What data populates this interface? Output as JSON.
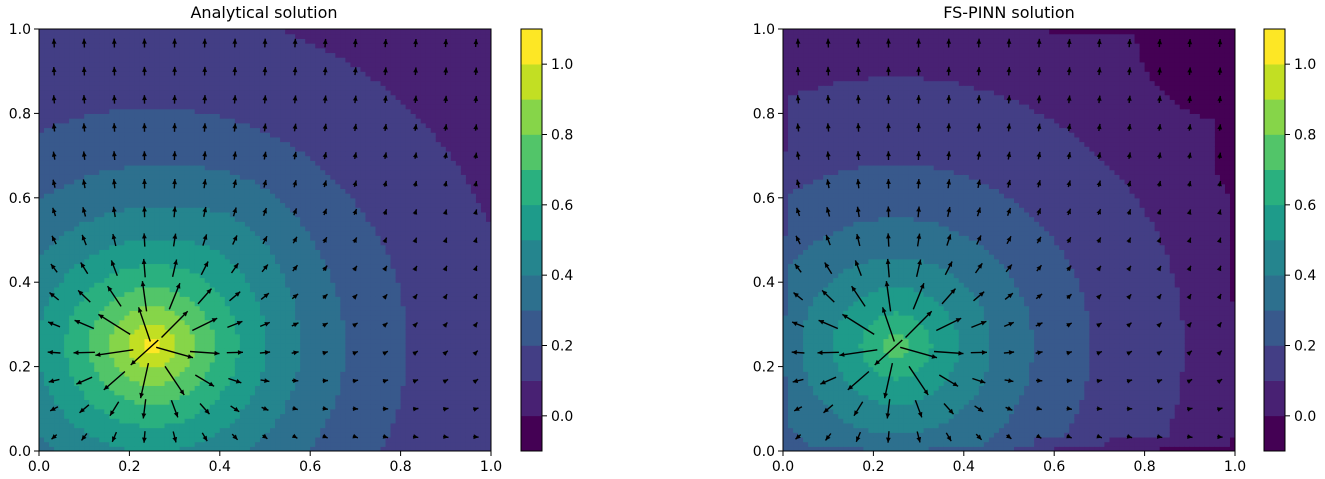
{
  "colors": {
    "level_fills": [
      "#440154",
      "#482173",
      "#433e85",
      "#38598c",
      "#2d708e",
      "#25858e",
      "#1e9b8a",
      "#2ab07f",
      "#52c569",
      "#86d549",
      "#c2df23",
      "#fde725"
    ],
    "arrow": "#000000",
    "frame": "#000000",
    "contour_line": "#ffffff"
  },
  "chart_data": [
    {
      "type": "heatmap",
      "subtype": "filled-contour with quiver",
      "title": "Analytical solution",
      "xlabel": "",
      "ylabel": "",
      "xlim": [
        0.0,
        1.0
      ],
      "ylim": [
        0.0,
        1.0
      ],
      "x_ticks": [
        "0.0",
        "0.2",
        "0.4",
        "0.6",
        "0.8",
        "1.0"
      ],
      "y_ticks": [
        "0.0",
        "0.2",
        "0.4",
        "0.6",
        "0.8",
        "1.0"
      ],
      "colorbar": {
        "range": [
          -0.1,
          1.1
        ],
        "ticks": [
          "0.0",
          "0.2",
          "0.4",
          "0.6",
          "0.8",
          "1.0"
        ],
        "levels": [
          -0.1,
          0.0,
          0.1,
          0.2,
          0.3,
          0.4,
          0.5,
          0.6,
          0.7,
          0.8,
          0.9,
          1.0,
          1.1
        ]
      },
      "source": {
        "x": 0.25,
        "y": 0.25,
        "peak": 1.05
      },
      "field": {
        "model": "analytical",
        "decay": 0.34,
        "floor": 0.0
      },
      "quiver": {
        "grid": 15,
        "direction": "outward from source, +y at top boundary"
      }
    },
    {
      "type": "heatmap",
      "subtype": "filled-contour with quiver",
      "title": "FS-PINN solution",
      "xlabel": "",
      "ylabel": "",
      "xlim": [
        0.0,
        1.0
      ],
      "ylim": [
        0.0,
        1.0
      ],
      "x_ticks": [
        "0.0",
        "0.2",
        "0.4",
        "0.6",
        "0.8",
        "1.0"
      ],
      "y_ticks": [
        "0.0",
        "0.2",
        "0.4",
        "0.6",
        "0.8",
        "1.0"
      ],
      "colorbar": {
        "range": [
          -0.1,
          1.1
        ],
        "ticks": [
          "0.0",
          "0.2",
          "0.4",
          "0.6",
          "0.8",
          "1.0"
        ],
        "levels": [
          -0.1,
          0.0,
          0.1,
          0.2,
          0.3,
          0.4,
          0.5,
          0.6,
          0.7,
          0.8,
          0.9,
          1.0,
          1.1
        ]
      },
      "source": {
        "x": 0.25,
        "y": 0.25,
        "peak": 0.78
      },
      "field": {
        "model": "pinn",
        "decay": 0.34,
        "floor": -0.02,
        "edge_dip": -0.05
      },
      "quiver": {
        "grid": 15,
        "direction": "outward from source, +y at top boundary"
      }
    }
  ]
}
